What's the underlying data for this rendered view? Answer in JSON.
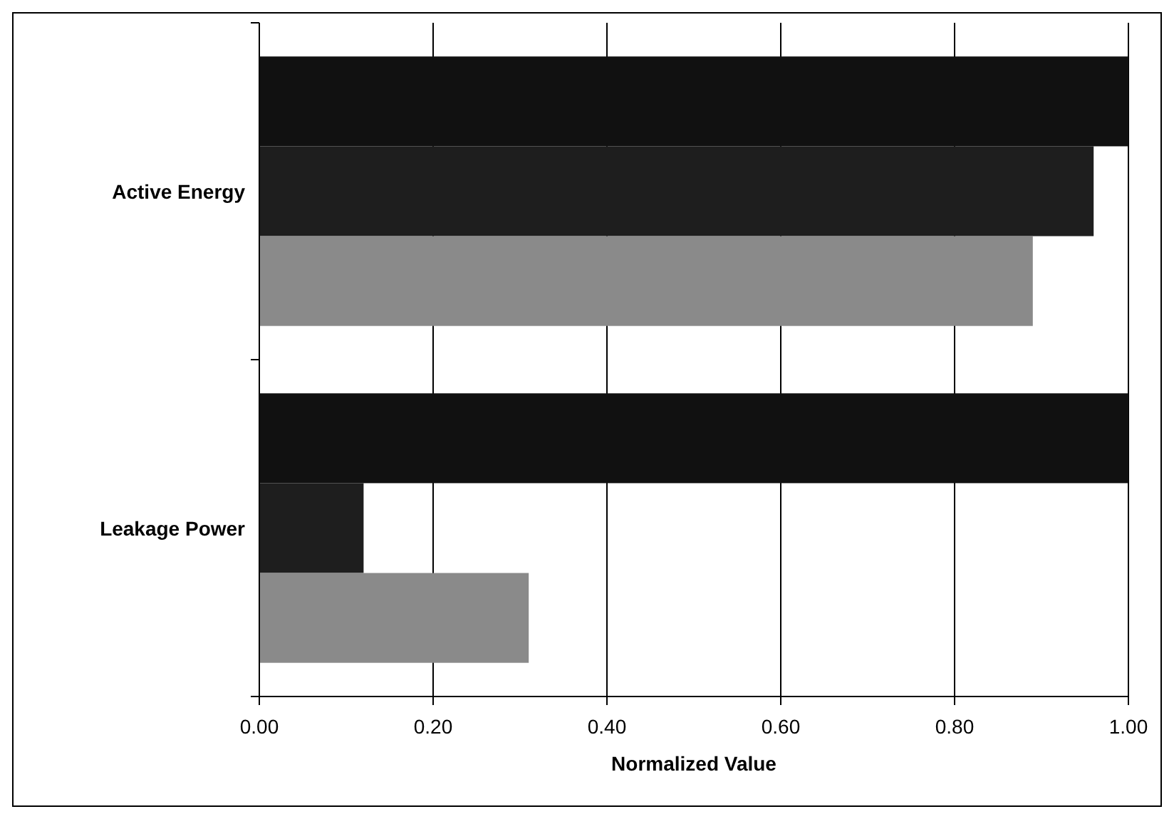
{
  "chart_data": {
    "type": "bar",
    "orientation": "horizontal",
    "xlabel": "Normalized Value",
    "categories": [
      "Active Energy",
      "Leakage Power"
    ],
    "series": [
      {
        "color": "#111111",
        "values": [
          1.0,
          1.0
        ]
      },
      {
        "color": "#1e1e1e",
        "values": [
          0.96,
          0.12
        ]
      },
      {
        "color": "#8a8a8a",
        "values": [
          0.89,
          0.31
        ]
      }
    ],
    "xlim": [
      0,
      1
    ],
    "xticks": [
      {
        "value": 0,
        "label": "0.00"
      },
      {
        "value": 0.2,
        "label": "0.20"
      },
      {
        "value": 0.4,
        "label": "0.40"
      },
      {
        "value": 0.6,
        "label": "0.60"
      },
      {
        "value": 0.8,
        "label": "0.80"
      },
      {
        "value": 1,
        "label": "1.00"
      }
    ],
    "grid": "x"
  }
}
